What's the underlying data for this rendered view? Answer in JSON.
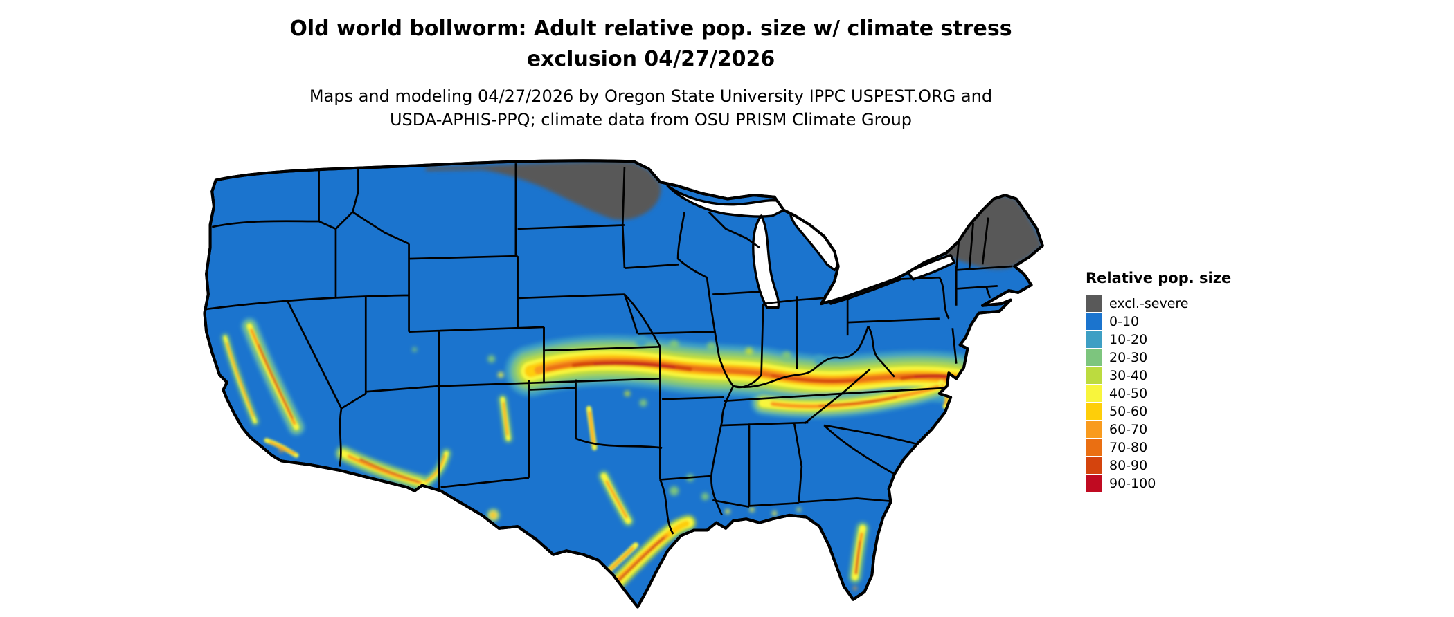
{
  "page": {
    "background": "#FFFFFF"
  },
  "title": {
    "line1": "Old world bollworm: Adult relative pop. size w/ climate stress",
    "line2": "exclusion 04/27/2026"
  },
  "subtitle": {
    "line1": "Maps and modeling 04/27/2026 by Oregon State University IPPC USPEST.ORG and",
    "line2": "USDA-APHIS-PPQ; climate data from OSU PRISM Climate Group"
  },
  "legend": {
    "title": "Relative pop. size",
    "entries": [
      {
        "key": "excl",
        "label": "excl.-severe",
        "color": "#595959"
      },
      {
        "key": "0-10",
        "label": "0-10",
        "color": "#1B74CE"
      },
      {
        "key": "10-20",
        "label": "10-20",
        "color": "#3E9FC4"
      },
      {
        "key": "20-30",
        "label": "20-30",
        "color": "#7DC57E"
      },
      {
        "key": "30-40",
        "label": "30-40",
        "color": "#BCDB3F"
      },
      {
        "key": "40-50",
        "label": "40-50",
        "color": "#F8F53C"
      },
      {
        "key": "50-60",
        "label": "50-60",
        "color": "#FECE09"
      },
      {
        "key": "60-70",
        "label": "60-70",
        "color": "#F99B1E"
      },
      {
        "key": "70-80",
        "label": "70-80",
        "color": "#EA6F12"
      },
      {
        "key": "80-90",
        "label": "80-90",
        "color": "#D4440D"
      },
      {
        "key": "90-100",
        "label": "90-100",
        "color": "#C00A21"
      }
    ]
  },
  "map": {
    "region": "Contiguous United States",
    "border_color": "#000000",
    "water_color": "#FFFFFF",
    "base_category": "0-10",
    "pattern_notes": [
      {
        "area": "Northern Minnesota and northern border strip",
        "category": "excl.-severe"
      },
      {
        "area": "Adirondacks and northern New England (NY, VT, NH, ME)",
        "category": "excl.-severe"
      },
      {
        "area": "Central band from Kansas/Missouri through Kentucky to Virginia",
        "category": "40-100"
      },
      {
        "area": "Tennessee valley branch",
        "category": "30-80"
      },
      {
        "area": "California Sierra Nevada foothills and coast ranges",
        "category": "30-90"
      },
      {
        "area": "Central Arizona / Mogollon Rim",
        "category": "30-90"
      },
      {
        "area": "Southern and coastal Texas",
        "category": "40-90"
      },
      {
        "area": "Central Florida ridge",
        "category": "30-80"
      },
      {
        "area": "Remainder of the contiguous US",
        "category": "0-10"
      }
    ]
  }
}
